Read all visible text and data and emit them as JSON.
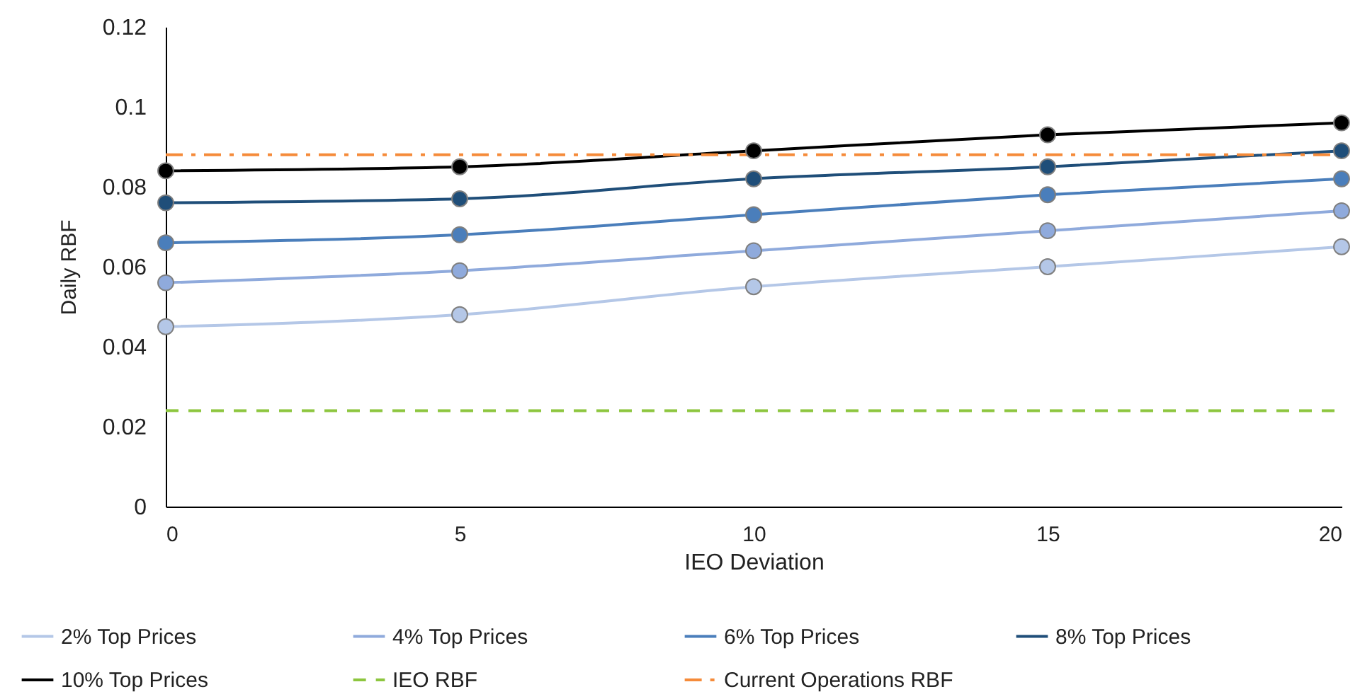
{
  "chart_data": {
    "type": "line",
    "xlabel": "IEO Deviation",
    "ylabel": "Daily RBF",
    "x": [
      0,
      5,
      10,
      15,
      20
    ],
    "xlim": [
      0,
      20
    ],
    "xticks": [
      0,
      5,
      10,
      15,
      20
    ],
    "ylim": [
      0,
      0.12
    ],
    "yticks": [
      0,
      0.02,
      0.04,
      0.06,
      0.08,
      0.1,
      0.12
    ],
    "grid": false,
    "legend": "bottom",
    "marker": "circle",
    "line_style": "solid",
    "series": [
      {
        "name": "2% Top Prices",
        "color": "#b4c7e7",
        "values": [
          0.045,
          0.048,
          0.055,
          0.06,
          0.065
        ]
      },
      {
        "name": "4% Top Prices",
        "color": "#8faadc",
        "values": [
          0.056,
          0.059,
          0.064,
          0.069,
          0.074
        ]
      },
      {
        "name": "6% Top Prices",
        "color": "#4a7ebb",
        "values": [
          0.066,
          0.068,
          0.073,
          0.078,
          0.082
        ]
      },
      {
        "name": "8% Top Prices",
        "color": "#1f4e79",
        "values": [
          0.076,
          0.077,
          0.082,
          0.085,
          0.089
        ]
      },
      {
        "name": "10% Top Prices",
        "color": "#000000",
        "values": [
          0.084,
          0.085,
          0.089,
          0.093,
          0.096
        ]
      }
    ],
    "ref_lines": [
      {
        "axis": "y",
        "value": 0.024,
        "label": "IEO RBF",
        "color": "#8dc63f",
        "line_style": "dashed"
      },
      {
        "axis": "y",
        "value": 0.088,
        "label": "Current Operations RBF",
        "color": "#f58b3a",
        "line_style": "dashdot"
      }
    ]
  }
}
